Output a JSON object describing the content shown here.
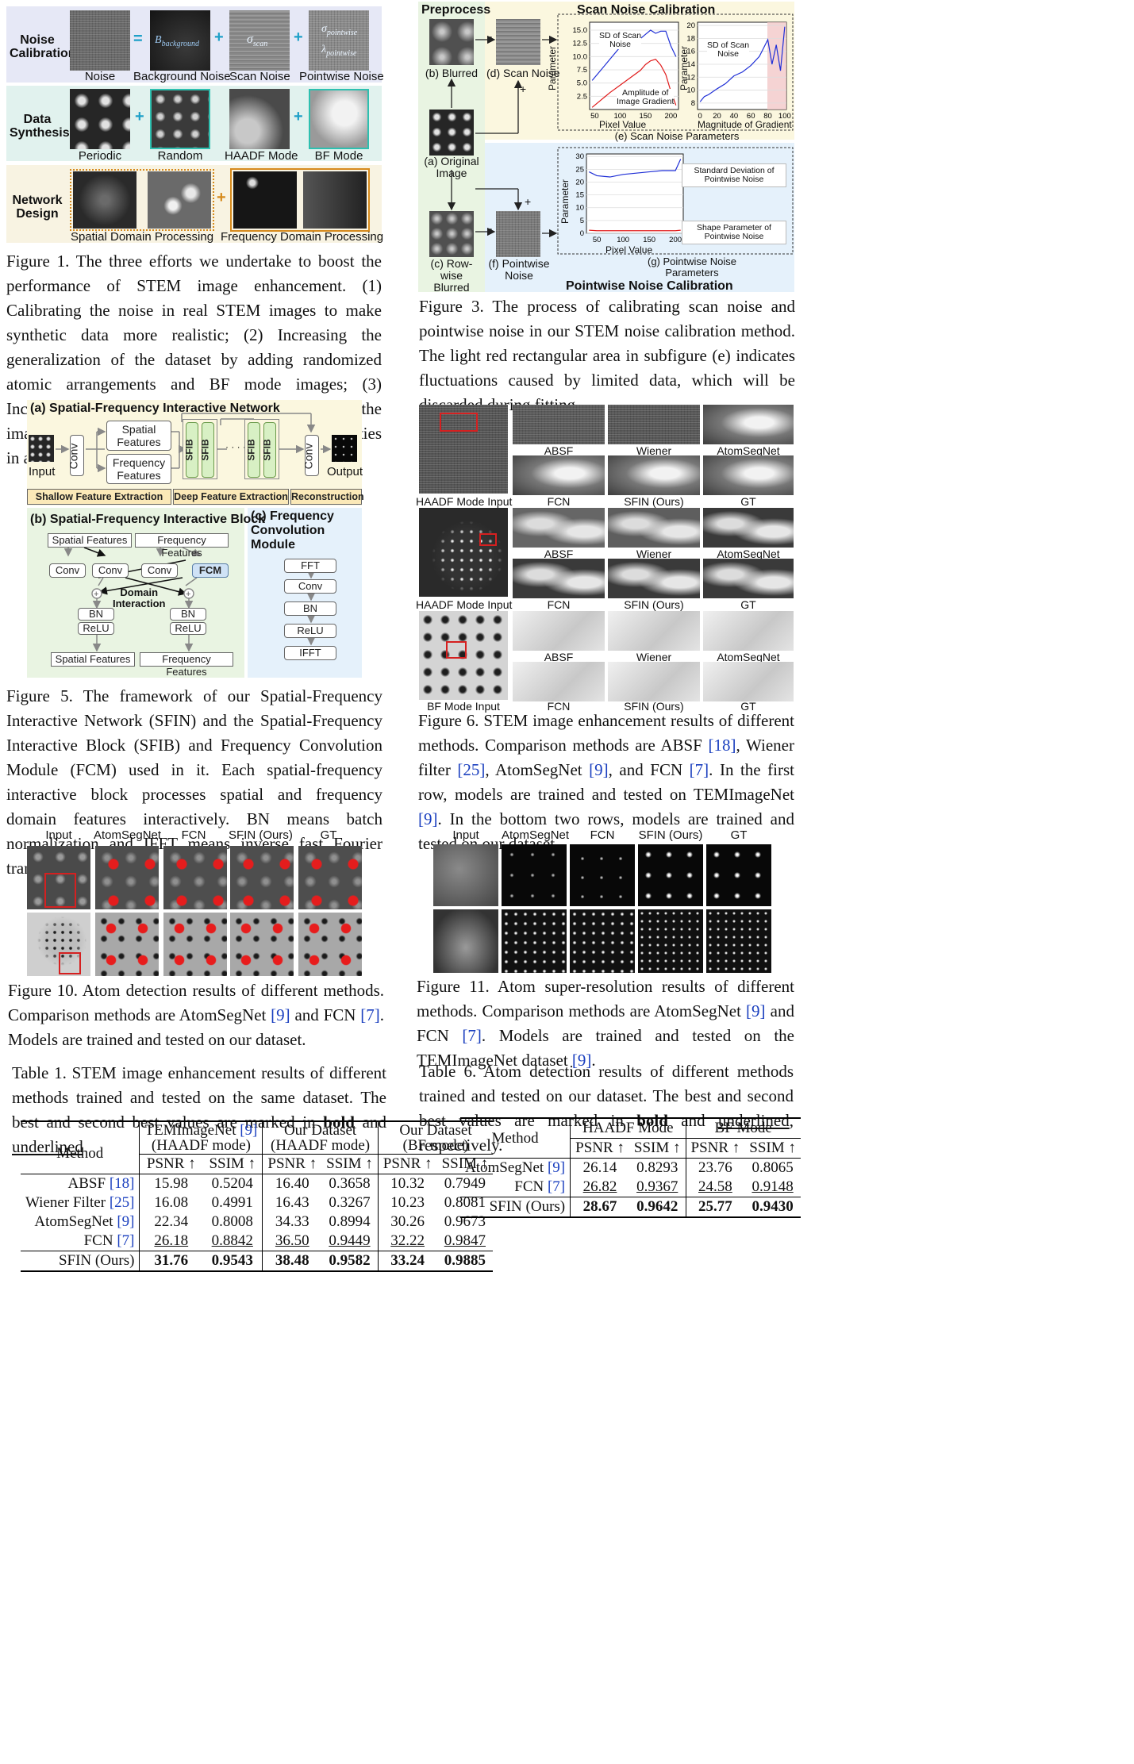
{
  "fig1": {
    "rows": [
      "Noise\nCalibration",
      "Data\nSynthesis",
      "Network\nDesign"
    ],
    "row1_labels": [
      "Noise",
      "Background Noise",
      "Scan Noise",
      "Pointwise Noise"
    ],
    "row1_sym_bg": "B",
    "row1_sym_bg_sub": "background",
    "row1_sym_scan": "σ",
    "row1_sym_scan_sub": "scan",
    "row1_sym_pw1": "σ",
    "row1_sym_pw1_sub": "pointwise",
    "row1_sym_pw2": "λ",
    "row1_sym_pw2_sub": "pointwise",
    "row2_labels": [
      "Periodic",
      "Random",
      "HAADF Mode",
      "BF Mode"
    ],
    "row3_labels": [
      "Spatial Domain Processing",
      "Frequency Domain Processing"
    ],
    "caption": "Figure 1. The three efforts we undertake to boost the performance of STEM image enhancement. (1) Calibrating the noise in real STEM images to make synthetic data more realistic; (2) Increasing the generalization of the dataset by adding randomized atomic arrangements and BF mode images; (3) Incorporating frequency domain operations in the image enhancement network to leverage the regularities in atomic arrangements."
  },
  "fig3": {
    "preprocess": "Preprocess",
    "scan_title": "Scan Noise Calibration",
    "pw_title": "Pointwise Noise Calibration",
    "blurred": "(b) Blurred",
    "original": "(a) Original\nImage",
    "rowwise": "(c) Row-wise\nBlurred",
    "scan_noise": "(d) Scan Noise",
    "pw_noise": "(f) Pointwise\nNoise",
    "e_label": "(e) Scan Noise Parameters",
    "g_label": "(g) Pointwise Noise\nParameters",
    "plot1_legend1": "SD of Scan\nNoise",
    "plot1_legend2": "Amplitude of\nImage Gradient",
    "plot1_xlabel": "Pixel Value",
    "plot1_ylabel": "Parameter",
    "plot1_yticks": [
      "15.0",
      "12.5",
      "10.0",
      "7.5",
      "5.0",
      "2.5"
    ],
    "plot1_xticks": [
      "50",
      "100",
      "150",
      "200"
    ],
    "plot2_legend": "SD of Scan\nNoise",
    "plot2_xlabel": "Magnitude of Gradient",
    "plot2_ylabel": "Parameter",
    "plot2_yticks": [
      "20",
      "18",
      "16",
      "14",
      "12",
      "10",
      "8"
    ],
    "plot2_xticks": [
      "0",
      "20",
      "40",
      "60",
      "80",
      "100"
    ],
    "plot3_xlabel": "Pixel Value",
    "plot3_ylabel": "Parameter",
    "plot3_yticks": [
      "30",
      "25",
      "20",
      "15",
      "10",
      "5",
      "0"
    ],
    "plot3_xticks": [
      "50",
      "100",
      "150",
      "200"
    ],
    "plot3_legend1": "Standard Deviation of\nPointwise Noise",
    "plot3_legend2": "Shape Parameter of\nPointwise Noise",
    "minus": "-",
    "plus": "+",
    "caption": "Figure 3. The process of calibrating scan noise and pointwise noise in our STEM noise calibration method. The light red rectangular area in subfigure (e) indicates fluctuations caused by limited data, which will be discarded during fitting."
  },
  "fig5": {
    "title_a": "(a) Spatial-Frequency Interactive Network",
    "input": "Input",
    "output": "Output",
    "conv": "Conv",
    "spatial_features": "Spatial\nFeatures",
    "frequency_features": "Frequency\nFeatures",
    "sfib": "SFIB",
    "dots": "· · · · ·",
    "stage1": "Shallow Feature Extraction",
    "stage2": "Deep Feature Extraction",
    "stage3": "Reconstruction",
    "title_b": "(b) Spatial-Frequency Interactive Block",
    "title_c": "(c) Frequency\nConvolution Module",
    "sf": "Spatial Features",
    "ff": "Frequency Features",
    "fcm": "FCM",
    "bn": "BN",
    "relu": "ReLU",
    "domain": "Domain\nInteraction",
    "fft": "FFT",
    "ifft": "IFFT",
    "caption": "Figure 5. The framework of our Spatial-Frequency Interactive Network (SFIN) and the Spatial-Frequency Interactive Block (SFIB) and Frequency Convolution Module (FCM) used in it. Each spatial-frequency interactive block processes spatial and frequency domain features interactively. BN means batch normalization and IFFT means inverse fast Fourier transform."
  },
  "fig6": {
    "inputs": [
      "HAADF Mode Input",
      "HAADF Mode Input",
      "BF Mode Input"
    ],
    "top_labels": [
      "ABSF",
      "Wiener",
      "AtomSegNet"
    ],
    "bottom_labels": [
      "FCN",
      "SFIN (Ours)",
      "GT"
    ],
    "caption_a": "Figure 6. STEM image enhancement results of different methods. Comparison methods are ABSF ",
    "r18": "[18]",
    "t1": ", Wiener filter ",
    "r25": "[25]",
    "t2": ", AtomSegNet ",
    "r9": "[9]",
    "t3": ", and FCN ",
    "r7": "[7]",
    "t4": ". In the first row, models are trained and tested on TEMImageNet ",
    "r9b": "[9]",
    "t5": ". In the bottom two rows, models are trained and tested on our dataset."
  },
  "fig10": {
    "headers": [
      "Input",
      "AtomSegNet",
      "FCN",
      "SFIN (Ours)",
      "GT"
    ],
    "caption_a": "Figure 10. Atom detection results of different methods. Comparison methods are AtomSegNet ",
    "r9": "[9]",
    "t1": " and FCN ",
    "r7": "[7]",
    "t2": ". Models are trained and tested on our dataset."
  },
  "fig11": {
    "headers": [
      "Input",
      "AtomSegNet",
      "FCN",
      "SFIN (Ours)",
      "GT"
    ],
    "caption_a": "Figure 11. Atom super-resolution results of different methods. Comparison methods are AtomSegNet ",
    "r9": "[9]",
    "t1": " and FCN ",
    "r7": "[7]",
    "t2": ". Models are trained and tested on the TEMImageNet dataset ",
    "r9b": "[9]",
    "t3": "."
  },
  "table1": {
    "cap_a": "Table 1. STEM image enhancement results of different methods trained and tested on the same dataset. The best and second best values are marked in ",
    "bold": "bold",
    "and": " and ",
    "underlined": "underlined",
    ", respectively.": ", respectively.",
    "h_method": "Method",
    "h_temi": "TEMImageNet ",
    "h_temi_ref": "[9]",
    "h_temi_mode": "(HAADF mode)",
    "h_our1": "Our Dataset",
    "h_our1_mode": "(HAADF mode)",
    "h_our2": "Our Dataset",
    "h_our2_mode": "(BF mode)",
    "psnr": "PSNR ↑",
    "ssim": "SSIM ↑",
    "rows": [
      {
        "m": "ABSF ",
        "r": "[18]",
        "v": [
          "15.98",
          "0.5204",
          "16.40",
          "0.3658",
          "10.32",
          "0.7949"
        ]
      },
      {
        "m": "Wiener Filter ",
        "r": "[25]",
        "v": [
          "16.08",
          "0.4991",
          "16.43",
          "0.3267",
          "10.23",
          "0.8081"
        ]
      },
      {
        "m": "AtomSegNet ",
        "r": "[9]",
        "v": [
          "22.34",
          "0.8008",
          "34.33",
          "0.8994",
          "30.26",
          "0.9673"
        ]
      },
      {
        "m": "FCN ",
        "r": "[7]",
        "v": [
          "26.18",
          "0.8842",
          "36.50",
          "0.9449",
          "32.22",
          "0.9847"
        ]
      },
      {
        "m": "SFIN (Ours)",
        "r": "",
        "v": [
          "31.76",
          "0.9543",
          "38.48",
          "0.9582",
          "33.24",
          "0.9885"
        ]
      }
    ]
  },
  "table6": {
    "cap_a": "Table 6. Atom detection results of different methods trained and tested on our dataset. The best and second best values are marked in ",
    "bold": "bold",
    "and": " and ",
    "underlined": "underlined",
    "end": ", respectively.",
    "h_method": "Method",
    "h_haadf": "HAADF Mode",
    "h_bf": "BF Mode",
    "psnr": "PSNR ↑",
    "ssim": "SSIM ↑",
    "rows": [
      {
        "m": "AtomSegNet ",
        "r": "[9]",
        "v": [
          "26.14",
          "0.8293",
          "23.76",
          "0.8065"
        ]
      },
      {
        "m": "FCN ",
        "r": "[7]",
        "v": [
          "26.82",
          "0.9367",
          "24.58",
          "0.9148"
        ]
      },
      {
        "m": "SFIN (Ours)",
        "r": "",
        "v": [
          "28.67",
          "0.9642",
          "25.77",
          "0.9430"
        ]
      }
    ]
  },
  "chart_data": [
    {
      "type": "line",
      "title": "",
      "xlabel": "Pixel Value",
      "ylabel": "Parameter",
      "xlim": [
        40,
        215
      ],
      "ylim": [
        0,
        16.5
      ],
      "series": [
        {
          "name": "SD of Scan Noise",
          "color": "#1f2fd6",
          "x": [
            45,
            60,
            80,
            100,
            120,
            140,
            150,
            160,
            170,
            180,
            190,
            200,
            210
          ],
          "values": [
            5.5,
            7.2,
            9.5,
            11.8,
            12.8,
            13.4,
            14.2,
            15.0,
            14.4,
            14.8,
            14.8,
            12.0,
            10.0
          ]
        },
        {
          "name": "Amplitude of Image Gradient",
          "color": "#e01a1a",
          "x": [
            45,
            60,
            80,
            100,
            120,
            140,
            150,
            160,
            170,
            180,
            190,
            200,
            210
          ],
          "values": [
            0.4,
            1.6,
            3.2,
            4.6,
            6.0,
            7.4,
            8.5,
            9.2,
            9.5,
            8.4,
            6.6,
            3.4,
            0.8
          ]
        }
      ]
    },
    {
      "type": "line",
      "title": "",
      "xlabel": "Magnitude of Gradient",
      "ylabel": "Parameter",
      "xlim": [
        -3,
        102
      ],
      "ylim": [
        7,
        20.5
      ],
      "series": [
        {
          "name": "SD of Scan Noise",
          "color": "#1f2fd6",
          "x": [
            0,
            5,
            10,
            20,
            30,
            40,
            50,
            60,
            70,
            75,
            80,
            85,
            90,
            95,
            100
          ],
          "values": [
            8.2,
            9.0,
            9.3,
            10.2,
            11.0,
            12.2,
            12.8,
            13.8,
            15.2,
            16.5,
            17.8,
            14.0,
            17.0,
            13.0,
            19.8
          ]
        }
      ]
    },
    {
      "type": "line",
      "title": "",
      "xlabel": "Pixel Value",
      "ylabel": "Parameter",
      "xlim": [
        30,
        215
      ],
      "ylim": [
        0,
        31
      ],
      "series": [
        {
          "name": "Standard Deviation of Pointwise Noise",
          "color": "#1f2fd6",
          "x": [
            35,
            50,
            75,
            100,
            125,
            150,
            175,
            200,
            210
          ],
          "values": [
            24,
            22.5,
            22,
            23,
            23.5,
            24,
            24.5,
            24.5,
            29
          ]
        },
        {
          "name": "Shape Parameter of Pointwise Noise",
          "color": "#e01a1a",
          "x": [
            35,
            50,
            75,
            100,
            125,
            150,
            175,
            200,
            210
          ],
          "values": [
            1.2,
            1.0,
            1.0,
            1.0,
            1.0,
            1.0,
            1.0,
            1.0,
            1.2
          ]
        }
      ]
    }
  ]
}
